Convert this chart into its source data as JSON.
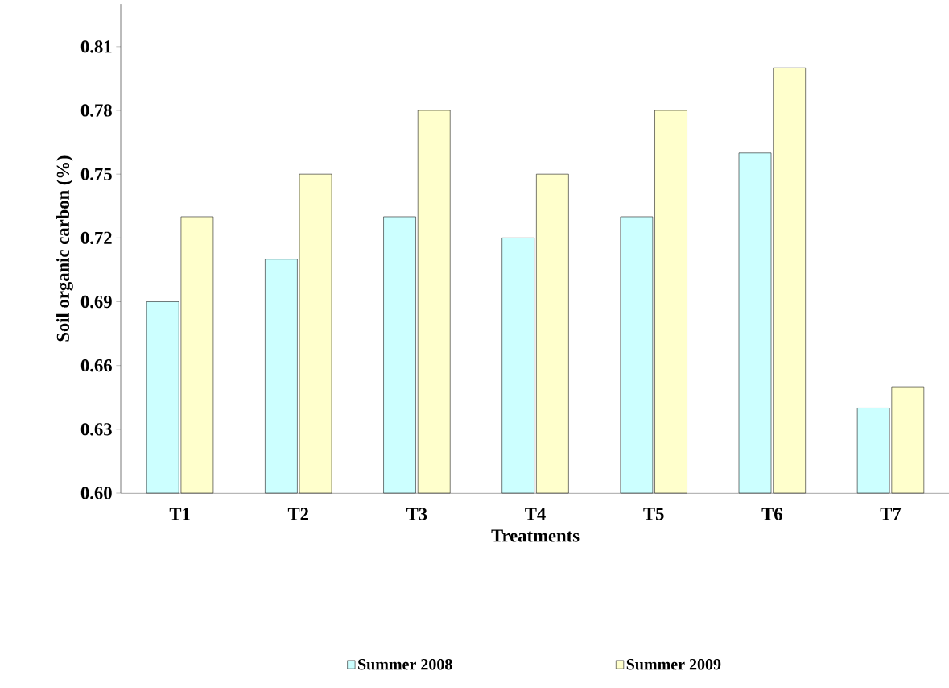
{
  "chart_data": {
    "type": "bar",
    "xlabel": "Treatments",
    "ylabel": "Soil organic carbon (%)",
    "categories": [
      "T1",
      "T2",
      "T3",
      "T4",
      "T5",
      "T6",
      "T7"
    ],
    "series": [
      {
        "name": "Summer 2008",
        "color": "#ccffff",
        "values": [
          0.69,
          0.71,
          0.73,
          0.72,
          0.73,
          0.76,
          0.64
        ]
      },
      {
        "name": "Summer 2009",
        "color": "#ffffcc",
        "values": [
          0.73,
          0.75,
          0.78,
          0.75,
          0.78,
          0.8,
          0.65
        ]
      }
    ],
    "ylim": [
      0.6,
      0.83
    ],
    "yticks": [
      {
        "value": 0.6,
        "label": "0.60"
      },
      {
        "value": 0.63,
        "label": "0.63"
      },
      {
        "value": 0.66,
        "label": "0.66"
      },
      {
        "value": 0.69,
        "label": "0.69"
      },
      {
        "value": 0.72,
        "label": "0.72"
      },
      {
        "value": 0.75,
        "label": "0.75"
      },
      {
        "value": 0.78,
        "label": "0.78"
      },
      {
        "value": 0.81,
        "label": "0.81"
      }
    ],
    "grid": false,
    "legend": "bottom"
  }
}
